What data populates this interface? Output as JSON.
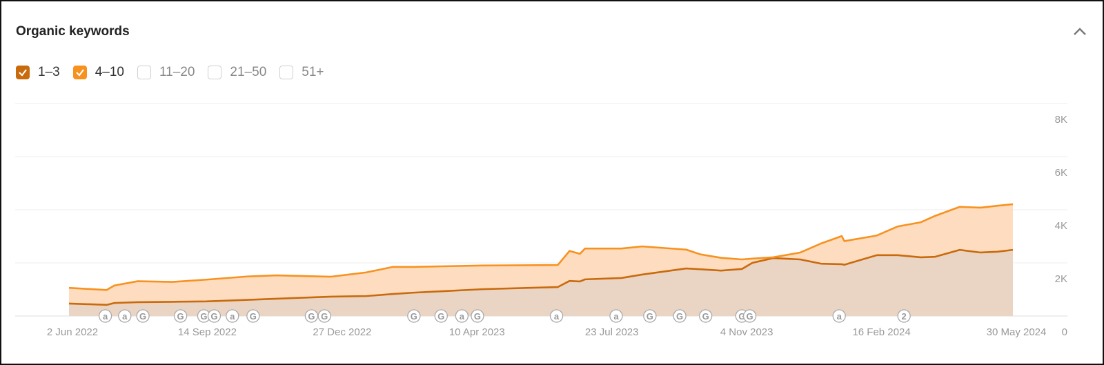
{
  "chart_data": {
    "type": "stacked_area",
    "title": "Organic keywords",
    "x": [
      "2022-06-02",
      "2022-07-01",
      "2022-07-07",
      "2022-07-25",
      "2022-08-21",
      "2022-09-16",
      "2022-10-18",
      "2022-11-09",
      "2022-12-21",
      "2023-01-17",
      "2023-02-07",
      "2023-02-23",
      "2023-03-16",
      "2023-04-17",
      "2023-06-14",
      "2023-06-23",
      "2023-07-01",
      "2023-07-05",
      "2023-08-02",
      "2023-08-18",
      "2023-09-21",
      "2023-10-02",
      "2023-10-18",
      "2023-11-03",
      "2023-11-11",
      "2023-11-27",
      "2023-12-18",
      "2024-01-03",
      "2024-01-19",
      "2024-01-21",
      "2024-02-15",
      "2024-03-02",
      "2024-03-20",
      "2024-03-31",
      "2024-04-19",
      "2024-05-05",
      "2024-05-18",
      "2024-05-30"
    ],
    "series": [
      {
        "name": "1–3",
        "color": "#c96a0c",
        "fill_color": "#ead4c3",
        "values": [
          470,
          420,
          490,
          520,
          535,
          550,
          610,
          650,
          730,
          750,
          830,
          880,
          930,
          1010,
          1090,
          1320,
          1300,
          1380,
          1430,
          1560,
          1790,
          1760,
          1710,
          1770,
          2000,
          2180,
          2130,
          1970,
          1950,
          1930,
          2290,
          2290,
          2210,
          2230,
          2490,
          2390,
          2420,
          2490
        ]
      },
      {
        "name": "4–10",
        "color": "#f7921f",
        "fill_color": "#fddcc0",
        "values": [
          1060,
          980,
          1150,
          1310,
          1285,
          1370,
          1490,
          1530,
          1480,
          1640,
          1850,
          1850,
          1870,
          1900,
          1920,
          2450,
          2340,
          2540,
          2540,
          2620,
          2500,
          2320,
          2190,
          2130,
          2160,
          2210,
          2390,
          2730,
          3010,
          2820,
          3030,
          3370,
          3530,
          3770,
          4110,
          4080,
          4150,
          4210
        ]
      }
    ],
    "unchecked_filters": [
      "11–20",
      "21–50",
      "51+"
    ],
    "xlim": [
      "2022-06-02",
      "2024-05-30"
    ],
    "xticks": [
      {
        "value": "2022-06-02",
        "label": "2 Jun 2022"
      },
      {
        "value": "2022-09-14",
        "label": "14 Sep 2022"
      },
      {
        "value": "2022-12-27",
        "label": "27 Dec 2022"
      },
      {
        "value": "2023-04-10",
        "label": "10 Apr 2023"
      },
      {
        "value": "2023-07-23",
        "label": "23 Jul 2023"
      },
      {
        "value": "2023-11-04",
        "label": "4 Nov 2023"
      },
      {
        "value": "2024-02-16",
        "label": "16 Feb 2024"
      },
      {
        "value": "2024-05-30",
        "label": "30 May 2024"
      }
    ],
    "ylim": [
      0,
      8000
    ],
    "yticks": [
      0,
      {
        "value": 2000,
        "label": "2K"
      },
      {
        "value": 4000,
        "label": "4K"
      },
      {
        "value": 6000,
        "label": "6K"
      },
      {
        "value": 8000,
        "label": "8K"
      }
    ],
    "y_axis_side": "right",
    "grid": true,
    "events": [
      {
        "date": "2022-06-30",
        "label": "a"
      },
      {
        "date": "2022-07-15",
        "label": "a"
      },
      {
        "date": "2022-07-29",
        "label": "G"
      },
      {
        "date": "2022-08-27",
        "label": "G"
      },
      {
        "date": "2022-09-14",
        "label": "G"
      },
      {
        "date": "2022-09-22",
        "label": "G"
      },
      {
        "date": "2022-10-06",
        "label": "a"
      },
      {
        "date": "2022-10-22",
        "label": "G"
      },
      {
        "date": "2022-12-06",
        "label": "G"
      },
      {
        "date": "2022-12-16",
        "label": "G"
      },
      {
        "date": "2023-02-23",
        "label": "G"
      },
      {
        "date": "2023-03-16",
        "label": "G"
      },
      {
        "date": "2023-04-01",
        "label": "a"
      },
      {
        "date": "2023-04-13",
        "label": "G"
      },
      {
        "date": "2023-06-13",
        "label": "a"
      },
      {
        "date": "2023-07-29",
        "label": "a"
      },
      {
        "date": "2023-08-24",
        "label": "G"
      },
      {
        "date": "2023-09-16",
        "label": "G"
      },
      {
        "date": "2023-10-06",
        "label": "G"
      },
      {
        "date": "2023-11-03",
        "label": "G"
      },
      {
        "date": "2023-11-09",
        "label": "G"
      },
      {
        "date": "2024-01-17",
        "label": "a"
      },
      {
        "date": "2024-03-07",
        "label": "2"
      }
    ]
  }
}
